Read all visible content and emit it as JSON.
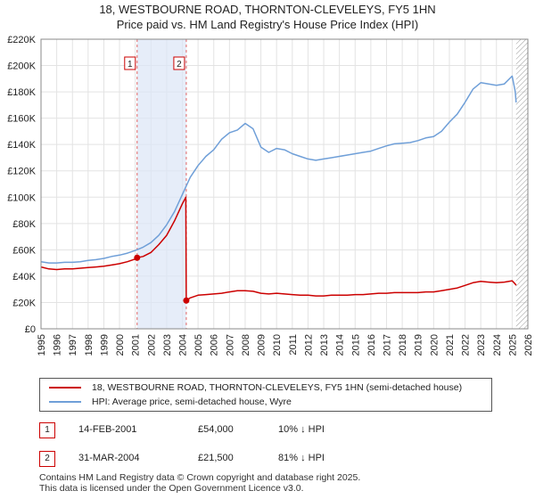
{
  "title_line1": "18, WESTBOURNE ROAD, THORNTON-CLEVELEYS, FY5 1HN",
  "title_line2": "Price paid vs. HM Land Registry's House Price Index (HPI)",
  "chart_data": {
    "type": "line",
    "xlim": [
      1995,
      2026
    ],
    "ylim": [
      0,
      220000
    ],
    "y_ticks": [
      0,
      20000,
      40000,
      60000,
      80000,
      100000,
      120000,
      140000,
      160000,
      180000,
      200000,
      220000
    ],
    "y_tick_labels": [
      "£0",
      "£20K",
      "£40K",
      "£60K",
      "£80K",
      "£100K",
      "£120K",
      "£140K",
      "£160K",
      "£180K",
      "£200K",
      "£220K"
    ],
    "x_ticks": [
      1995,
      1996,
      1997,
      1998,
      1999,
      2000,
      2001,
      2002,
      2003,
      2004,
      2005,
      2006,
      2007,
      2008,
      2009,
      2010,
      2011,
      2012,
      2013,
      2014,
      2015,
      2016,
      2017,
      2018,
      2019,
      2020,
      2021,
      2022,
      2023,
      2024,
      2025,
      2026
    ],
    "x_tick_labels": [
      "1995",
      "1996",
      "1997",
      "1998",
      "1999",
      "2000",
      "2001",
      "2002",
      "2003",
      "2004",
      "2005",
      "2006",
      "2007",
      "2008",
      "2009",
      "2010",
      "2011",
      "2012",
      "2013",
      "2014",
      "2015",
      "2016",
      "2017",
      "2018",
      "2019",
      "2020",
      "2021",
      "2022",
      "2023",
      "2024",
      "2025",
      "2026"
    ],
    "shaded_period": [
      2001.12,
      2004.25
    ],
    "future_hatch_start": 2025.25,
    "series": [
      {
        "name": "18, WESTBOURNE ROAD, THORNTON-CLEVELEYS, FY5 1HN (semi-detached house)",
        "color": "#cc0000",
        "points": [
          [
            1995.0,
            47000
          ],
          [
            1995.5,
            45500
          ],
          [
            1996.0,
            45000
          ],
          [
            1996.5,
            45500
          ],
          [
            1997.0,
            45500
          ],
          [
            1997.5,
            46000
          ],
          [
            1998.0,
            46500
          ],
          [
            1998.5,
            47000
          ],
          [
            1999.0,
            47500
          ],
          [
            1999.5,
            48500
          ],
          [
            2000.0,
            49500
          ],
          [
            2000.5,
            51000
          ],
          [
            2001.0,
            53000
          ],
          [
            2001.12,
            54000
          ],
          [
            2001.5,
            55000
          ],
          [
            2002.0,
            58000
          ],
          [
            2002.5,
            64000
          ],
          [
            2003.0,
            71000
          ],
          [
            2003.5,
            82000
          ],
          [
            2004.0,
            95000
          ],
          [
            2004.22,
            100000
          ],
          [
            2004.25,
            21500
          ],
          [
            2004.5,
            23500
          ],
          [
            2005.0,
            25500
          ],
          [
            2005.5,
            26000
          ],
          [
            2006.0,
            26500
          ],
          [
            2006.5,
            27000
          ],
          [
            2007.0,
            28000
          ],
          [
            2007.5,
            29000
          ],
          [
            2008.0,
            29000
          ],
          [
            2008.5,
            28500
          ],
          [
            2009.0,
            27000
          ],
          [
            2009.5,
            26500
          ],
          [
            2010.0,
            27000
          ],
          [
            2010.5,
            26500
          ],
          [
            2011.0,
            26000
          ],
          [
            2011.5,
            25500
          ],
          [
            2012.0,
            25500
          ],
          [
            2012.5,
            25000
          ],
          [
            2013.0,
            25000
          ],
          [
            2013.5,
            25500
          ],
          [
            2014.0,
            25500
          ],
          [
            2014.5,
            25500
          ],
          [
            2015.0,
            26000
          ],
          [
            2015.5,
            26000
          ],
          [
            2016.0,
            26500
          ],
          [
            2016.5,
            27000
          ],
          [
            2017.0,
            27000
          ],
          [
            2017.5,
            27500
          ],
          [
            2018.0,
            27500
          ],
          [
            2018.5,
            27500
          ],
          [
            2019.0,
            27500
          ],
          [
            2019.5,
            28000
          ],
          [
            2020.0,
            28000
          ],
          [
            2020.5,
            29000
          ],
          [
            2021.0,
            30000
          ],
          [
            2021.5,
            31000
          ],
          [
            2022.0,
            33000
          ],
          [
            2022.5,
            35000
          ],
          [
            2023.0,
            36000
          ],
          [
            2023.5,
            35500
          ],
          [
            2024.0,
            35000
          ],
          [
            2024.5,
            35500
          ],
          [
            2025.0,
            36500
          ],
          [
            2025.2,
            34000
          ],
          [
            2025.25,
            33000
          ]
        ]
      },
      {
        "name": "HPI: Average price, semi-detached house, Wyre",
        "color": "#6f9fd8",
        "points": [
          [
            1995.0,
            51000
          ],
          [
            1995.5,
            50000
          ],
          [
            1996.0,
            50000
          ],
          [
            1996.5,
            50500
          ],
          [
            1997.0,
            50500
          ],
          [
            1997.5,
            51000
          ],
          [
            1998.0,
            52000
          ],
          [
            1998.5,
            52500
          ],
          [
            1999.0,
            53500
          ],
          [
            1999.5,
            55000
          ],
          [
            2000.0,
            56000
          ],
          [
            2000.5,
            57500
          ],
          [
            2001.0,
            59500
          ],
          [
            2001.5,
            62000
          ],
          [
            2002.0,
            65500
          ],
          [
            2002.5,
            71000
          ],
          [
            2003.0,
            79000
          ],
          [
            2003.5,
            89000
          ],
          [
            2004.0,
            102000
          ],
          [
            2004.5,
            115000
          ],
          [
            2005.0,
            124000
          ],
          [
            2005.5,
            131000
          ],
          [
            2006.0,
            136000
          ],
          [
            2006.5,
            144000
          ],
          [
            2007.0,
            149000
          ],
          [
            2007.5,
            151000
          ],
          [
            2008.0,
            156000
          ],
          [
            2008.5,
            152000
          ],
          [
            2009.0,
            138000
          ],
          [
            2009.5,
            134000
          ],
          [
            2010.0,
            137000
          ],
          [
            2010.5,
            136000
          ],
          [
            2011.0,
            133000
          ],
          [
            2011.5,
            131000
          ],
          [
            2012.0,
            129000
          ],
          [
            2012.5,
            128000
          ],
          [
            2013.0,
            129000
          ],
          [
            2013.5,
            130000
          ],
          [
            2014.0,
            131000
          ],
          [
            2014.5,
            132000
          ],
          [
            2015.0,
            133000
          ],
          [
            2015.5,
            134000
          ],
          [
            2016.0,
            135000
          ],
          [
            2016.5,
            137000
          ],
          [
            2017.0,
            139000
          ],
          [
            2017.5,
            140500
          ],
          [
            2018.0,
            141000
          ],
          [
            2018.5,
            141500
          ],
          [
            2019.0,
            143000
          ],
          [
            2019.5,
            145000
          ],
          [
            2020.0,
            146000
          ],
          [
            2020.5,
            150000
          ],
          [
            2021.0,
            157000
          ],
          [
            2021.5,
            163000
          ],
          [
            2022.0,
            172000
          ],
          [
            2022.5,
            182000
          ],
          [
            2023.0,
            187000
          ],
          [
            2023.5,
            186000
          ],
          [
            2024.0,
            185000
          ],
          [
            2024.5,
            186000
          ],
          [
            2025.0,
            192000
          ],
          [
            2025.2,
            180000
          ],
          [
            2025.25,
            172000
          ]
        ]
      }
    ],
    "markers": [
      {
        "label": "1",
        "x": 2001.12,
        "y": 54000
      },
      {
        "label": "2",
        "x": 2004.25,
        "y": 21500
      }
    ]
  },
  "legend": {
    "property_label": "18, WESTBOURNE ROAD, THORNTON-CLEVELEYS, FY5 1HN (semi-detached house)",
    "hpi_label": "HPI: Average price, semi-detached house, Wyre"
  },
  "transactions": [
    {
      "num": "1",
      "date": "14-FEB-2001",
      "price": "£54,000",
      "relative": "10% ↓ HPI"
    },
    {
      "num": "2",
      "date": "31-MAR-2004",
      "price": "£21,500",
      "relative": "81% ↓ HPI"
    }
  ],
  "footer_line1": "Contains HM Land Registry data © Crown copyright and database right 2025.",
  "footer_line2": "This data is licensed under the Open Government Licence v3.0."
}
